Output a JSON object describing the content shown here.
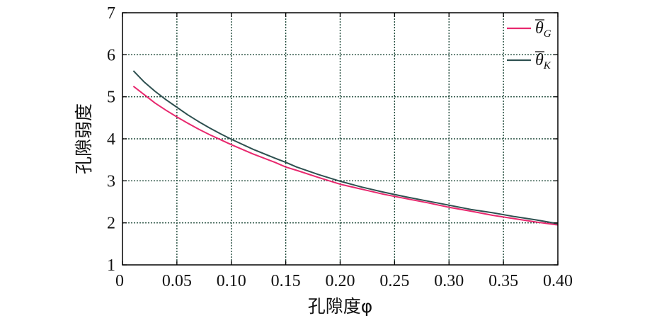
{
  "chart_data": {
    "type": "line",
    "xlabel": "孔隙度φ",
    "ylabel": "孔隙弱度",
    "xlim": [
      0,
      0.4
    ],
    "ylim": [
      1,
      7
    ],
    "x_ticks": [
      "0",
      "0.05",
      "0.10",
      "0.15",
      "0.20",
      "0.25",
      "0.30",
      "0.35",
      "0.40"
    ],
    "y_ticks": [
      "1",
      "2",
      "3",
      "4",
      "5",
      "6",
      "7"
    ],
    "grid": true,
    "legend_position": "top-right",
    "x": [
      0.01,
      0.02,
      0.03,
      0.04,
      0.05,
      0.06,
      0.07,
      0.08,
      0.09,
      0.1,
      0.12,
      0.14,
      0.15,
      0.16,
      0.18,
      0.2,
      0.22,
      0.24,
      0.26,
      0.28,
      0.3,
      0.32,
      0.34,
      0.36,
      0.38,
      0.4
    ],
    "series": [
      {
        "name": "θ̄G",
        "legend_symbol": "θ",
        "legend_subscript": "G",
        "color": "#e8286e",
        "values": [
          5.25,
          5.05,
          4.85,
          4.68,
          4.52,
          4.37,
          4.23,
          4.1,
          3.98,
          3.86,
          3.64,
          3.44,
          3.33,
          3.25,
          3.08,
          2.92,
          2.8,
          2.68,
          2.58,
          2.48,
          2.37,
          2.28,
          2.18,
          2.1,
          2.02,
          1.95
        ]
      },
      {
        "name": "θ̄K",
        "legend_symbol": "θ",
        "legend_subscript": "K",
        "color": "#2e5050",
        "values": [
          5.62,
          5.35,
          5.13,
          4.93,
          4.75,
          4.57,
          4.41,
          4.26,
          4.12,
          3.99,
          3.75,
          3.54,
          3.44,
          3.33,
          3.15,
          2.99,
          2.85,
          2.73,
          2.62,
          2.52,
          2.42,
          2.32,
          2.24,
          2.15,
          2.07,
          1.98
        ]
      }
    ]
  }
}
